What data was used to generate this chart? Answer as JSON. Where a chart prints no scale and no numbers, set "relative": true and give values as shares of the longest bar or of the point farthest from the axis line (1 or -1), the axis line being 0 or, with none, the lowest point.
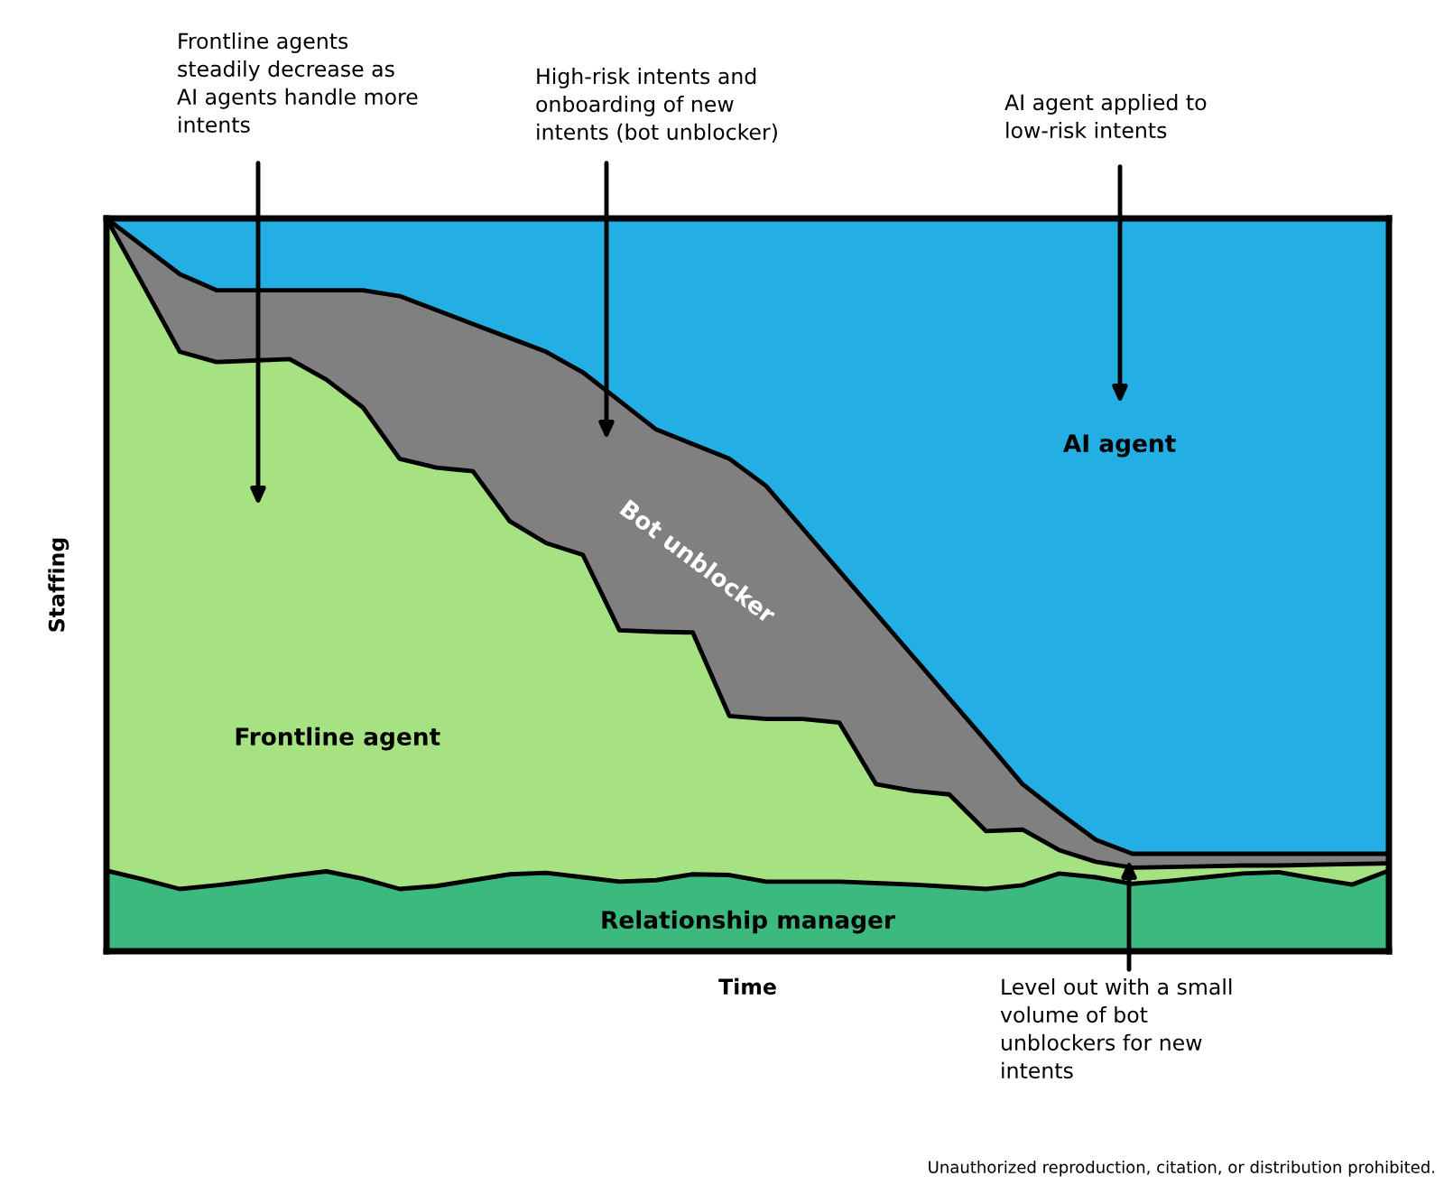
{
  "chart_data": {
    "type": "area",
    "stacked": true,
    "relative": true,
    "xlabel": "Time",
    "ylabel": "Staffing",
    "categories": [
      null,
      null,
      null,
      null,
      null,
      null,
      null,
      null,
      null,
      null,
      null,
      null,
      null,
      null,
      null,
      null,
      null,
      null,
      null,
      null,
      null,
      null,
      null,
      null,
      null,
      null,
      null,
      null,
      null,
      null,
      null,
      null,
      null,
      null,
      null,
      null
    ],
    "series": [
      {
        "name": "Relationship manager",
        "color": "#3cb97f",
        "values": [
          0.11,
          0.098,
          0.085,
          0.09,
          0.096,
          0.103,
          0.109,
          0.099,
          0.085,
          0.089,
          0.097,
          0.105,
          0.107,
          0.101,
          0.095,
          0.097,
          0.105,
          0.104,
          0.095,
          0.095,
          0.095,
          0.093,
          0.091,
          0.088,
          0.085,
          0.09,
          0.106,
          0.101,
          0.092,
          0.096,
          0.101,
          0.106,
          0.108,
          0.099,
          0.091,
          0.11
        ]
      },
      {
        "name": "Frontline agent",
        "color": "#a6e282",
        "values": [
          0.89,
          0.811,
          0.733,
          0.714,
          0.71,
          0.705,
          0.671,
          0.643,
          0.587,
          0.571,
          0.558,
          0.482,
          0.45,
          0.44,
          0.343,
          0.339,
          0.33,
          0.217,
          0.222,
          0.222,
          0.217,
          0.135,
          0.128,
          0.126,
          0.079,
          0.076,
          0.032,
          0.021,
          0.022,
          0.019,
          0.015,
          0.011,
          0.009,
          0.019,
          0.028,
          0.01
        ]
      },
      {
        "name": "Bot unblocker",
        "color": "#808080",
        "values": [
          0,
          0.053,
          0.106,
          0.098,
          0.096,
          0.094,
          0.122,
          0.16,
          0.222,
          0.215,
          0.201,
          0.25,
          0.261,
          0.249,
          0.313,
          0.276,
          0.257,
          0.351,
          0.318,
          0.26,
          0.207,
          0.233,
          0.184,
          0.131,
          0.123,
          0.062,
          0.051,
          0.03,
          0.019,
          0.018,
          0.017,
          0.016,
          0.016,
          0.015,
          0.014,
          0.013
        ]
      },
      {
        "name": "AI agent",
        "color": "#23aee4",
        "values": [
          0,
          0.038,
          0.076,
          0.098,
          0.098,
          0.098,
          0.098,
          0.098,
          0.106,
          0.125,
          0.144,
          0.163,
          0.182,
          0.21,
          0.249,
          0.288,
          0.308,
          0.328,
          0.365,
          0.423,
          0.481,
          0.539,
          0.597,
          0.655,
          0.713,
          0.772,
          0.811,
          0.848,
          0.867,
          0.867,
          0.867,
          0.867,
          0.867,
          0.867,
          0.867,
          0.867
        ]
      }
    ],
    "annotations": [
      "Frontline agents\nsteadily decrease as\nAI agents handle more\nintents",
      "High-risk intents and\nonboarding of new\nintents (bot unblocker)",
      "AI agent applied to\nlow-risk intents",
      "Level out with a small\nvolume of bot\nunblockers for new\nintents",
      "Unauthorized reproduction, citation, or distribution prohibited."
    ]
  }
}
